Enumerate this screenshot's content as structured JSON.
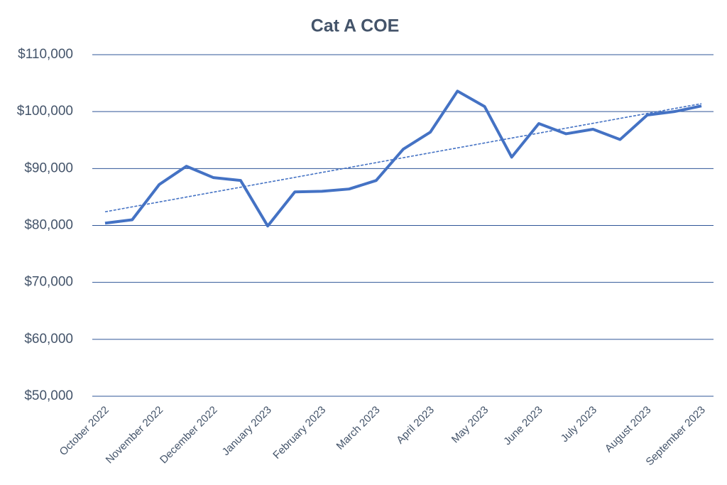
{
  "chart_data": {
    "type": "line",
    "title": "Cat A COE",
    "categories": [
      "October 2022",
      null,
      "November 2022",
      null,
      "December 2022",
      null,
      "January 2023",
      null,
      "February 2023",
      null,
      "March 2023",
      null,
      "April 2023",
      null,
      "May 2023",
      null,
      "June 2023",
      null,
      "July 2023",
      null,
      "August 2023",
      null,
      "September 2023"
    ],
    "series": [
      {
        "color": "#4472c4",
        "values": [
          80400,
          81000,
          87200,
          90400,
          88400,
          87900,
          79900,
          85900,
          86000,
          86400,
          87900,
          93400,
          96400,
          103600,
          100900,
          92000,
          97900,
          96100,
          96900,
          95100,
          99400,
          100000,
          101000
        ]
      }
    ],
    "trendline": {
      "color": "#4472c4",
      "values": [
        82400,
        101400
      ]
    },
    "ylim": [
      50000,
      110000
    ],
    "yticks": [
      {
        "value": 50000,
        "label": "$50,000"
      },
      {
        "value": 60000,
        "label": "$60,000"
      },
      {
        "value": 70000,
        "label": "$70,000"
      },
      {
        "value": 80000,
        "label": "$80,000"
      },
      {
        "value": 90000,
        "label": "$90,000"
      },
      {
        "value": 100000,
        "label": "$100,000"
      },
      {
        "value": 110000,
        "label": "$110,000"
      }
    ],
    "grid": true
  }
}
